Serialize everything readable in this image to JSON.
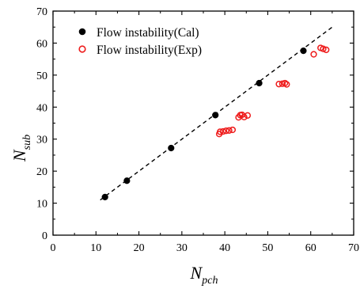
{
  "chart_data": {
    "type": "scatter",
    "xlabel": {
      "main": "N",
      "sub": "pch"
    },
    "ylabel": {
      "main": "N",
      "sub": "sub"
    },
    "xlim": [
      0,
      70
    ],
    "ylim": [
      0,
      70
    ],
    "xticks": [
      0,
      10,
      20,
      30,
      40,
      50,
      60,
      70
    ],
    "yticks": [
      0,
      10,
      20,
      30,
      40,
      50,
      60,
      70
    ],
    "grid": false,
    "legend_position": "top-left",
    "series": [
      {
        "name": "Flow instability(Cal)",
        "marker": "filled-circle",
        "color": "#000000",
        "points": [
          {
            "x": 12.1,
            "y": 11.9
          },
          {
            "x": 17.2,
            "y": 17.0
          },
          {
            "x": 27.5,
            "y": 27.2
          },
          {
            "x": 37.8,
            "y": 37.5
          },
          {
            "x": 48.0,
            "y": 47.5
          },
          {
            "x": 58.3,
            "y": 57.6
          }
        ]
      },
      {
        "name": "Flow instability(Exp)",
        "marker": "open-circle",
        "color": "#ee1c1c",
        "points": [
          {
            "x": 38.7,
            "y": 31.6
          },
          {
            "x": 38.9,
            "y": 32.3
          },
          {
            "x": 39.6,
            "y": 32.4
          },
          {
            "x": 40.3,
            "y": 32.6
          },
          {
            "x": 41.0,
            "y": 32.7
          },
          {
            "x": 41.8,
            "y": 32.9
          },
          {
            "x": 43.2,
            "y": 36.8
          },
          {
            "x": 43.6,
            "y": 37.5
          },
          {
            "x": 44.0,
            "y": 37.6
          },
          {
            "x": 44.5,
            "y": 36.9
          },
          {
            "x": 45.3,
            "y": 37.4
          },
          {
            "x": 52.6,
            "y": 47.2
          },
          {
            "x": 53.4,
            "y": 47.3
          },
          {
            "x": 54.0,
            "y": 47.5
          },
          {
            "x": 54.4,
            "y": 47.1
          },
          {
            "x": 60.7,
            "y": 56.5
          },
          {
            "x": 62.3,
            "y": 58.5
          },
          {
            "x": 62.9,
            "y": 58.2
          },
          {
            "x": 63.6,
            "y": 57.9
          }
        ]
      }
    ],
    "reference_line": {
      "style": "dashed",
      "color": "#000000",
      "from": {
        "x": 11.0,
        "y": 11.0
      },
      "to": {
        "x": 65.5,
        "y": 65.5
      }
    }
  }
}
